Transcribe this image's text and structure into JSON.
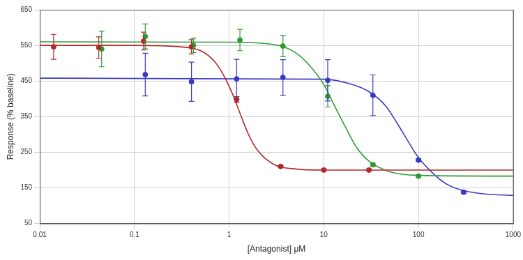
{
  "chart_data": {
    "type": "scatter",
    "x_label": "[Antagonist] μM",
    "y_label": "Response (% baseline)",
    "log": "x",
    "grid": true,
    "xlim": [
      0.01,
      1000
    ],
    "xticks": [
      0.01,
      0.1,
      1,
      10,
      100,
      1000
    ],
    "ylim": [
      50,
      650
    ],
    "yticks": [
      50,
      150,
      250,
      350,
      450,
      550,
      650
    ],
    "series": [
      {
        "color": "#b22a2a",
        "marker": "circle",
        "line_style": "solid",
        "x": [
          0.014,
          0.042,
          0.125,
          0.4,
          1.2,
          3.5,
          10,
          30
        ],
        "values": [
          546,
          544,
          562,
          546,
          398,
          210,
          200,
          200
        ],
        "errors": [
          35,
          30,
          25,
          20,
          8,
          3,
          3,
          3
        ],
        "fit_x": [
          0.01,
          0.1,
          0.3,
          0.5,
          0.7,
          0.9,
          1.1,
          1.3,
          1.6,
          2,
          3,
          5,
          10,
          1000
        ],
        "fit_values": [
          550,
          550,
          546,
          535,
          505,
          460,
          410,
          360,
          300,
          255,
          215,
          203,
          200,
          200
        ]
      },
      {
        "color": "#2f9a3a",
        "marker": "circle",
        "line_style": "solid",
        "x": [
          0.045,
          0.13,
          0.42,
          1.3,
          3.7,
          11,
          33,
          100
        ],
        "values": [
          540,
          575,
          550,
          565,
          548,
          407,
          215,
          183
        ],
        "errors": [
          50,
          35,
          20,
          30,
          30,
          30,
          4,
          4
        ],
        "fit_x": [
          0.01,
          1,
          3,
          5,
          7,
          10,
          13,
          17,
          22,
          30,
          50,
          100,
          1000
        ],
        "fit_values": [
          560,
          559,
          552,
          530,
          495,
          440,
          380,
          320,
          265,
          225,
          195,
          185,
          183
        ]
      },
      {
        "color": "#3a3ac4",
        "marker": "circle",
        "line_style": "solid",
        "x": [
          0.13,
          0.4,
          1.2,
          3.7,
          11,
          33,
          100,
          300
        ],
        "values": [
          468,
          448,
          456,
          460,
          452,
          410,
          228,
          138
        ],
        "errors": [
          60,
          55,
          55,
          50,
          58,
          57,
          4,
          4
        ],
        "fit_x": [
          0.01,
          10,
          20,
          30,
          45,
          60,
          80,
          100,
          150,
          200,
          300,
          500,
          1000
        ],
        "fit_values": [
          458,
          455,
          440,
          420,
          380,
          330,
          275,
          235,
          185,
          160,
          142,
          133,
          129
        ]
      }
    ]
  }
}
